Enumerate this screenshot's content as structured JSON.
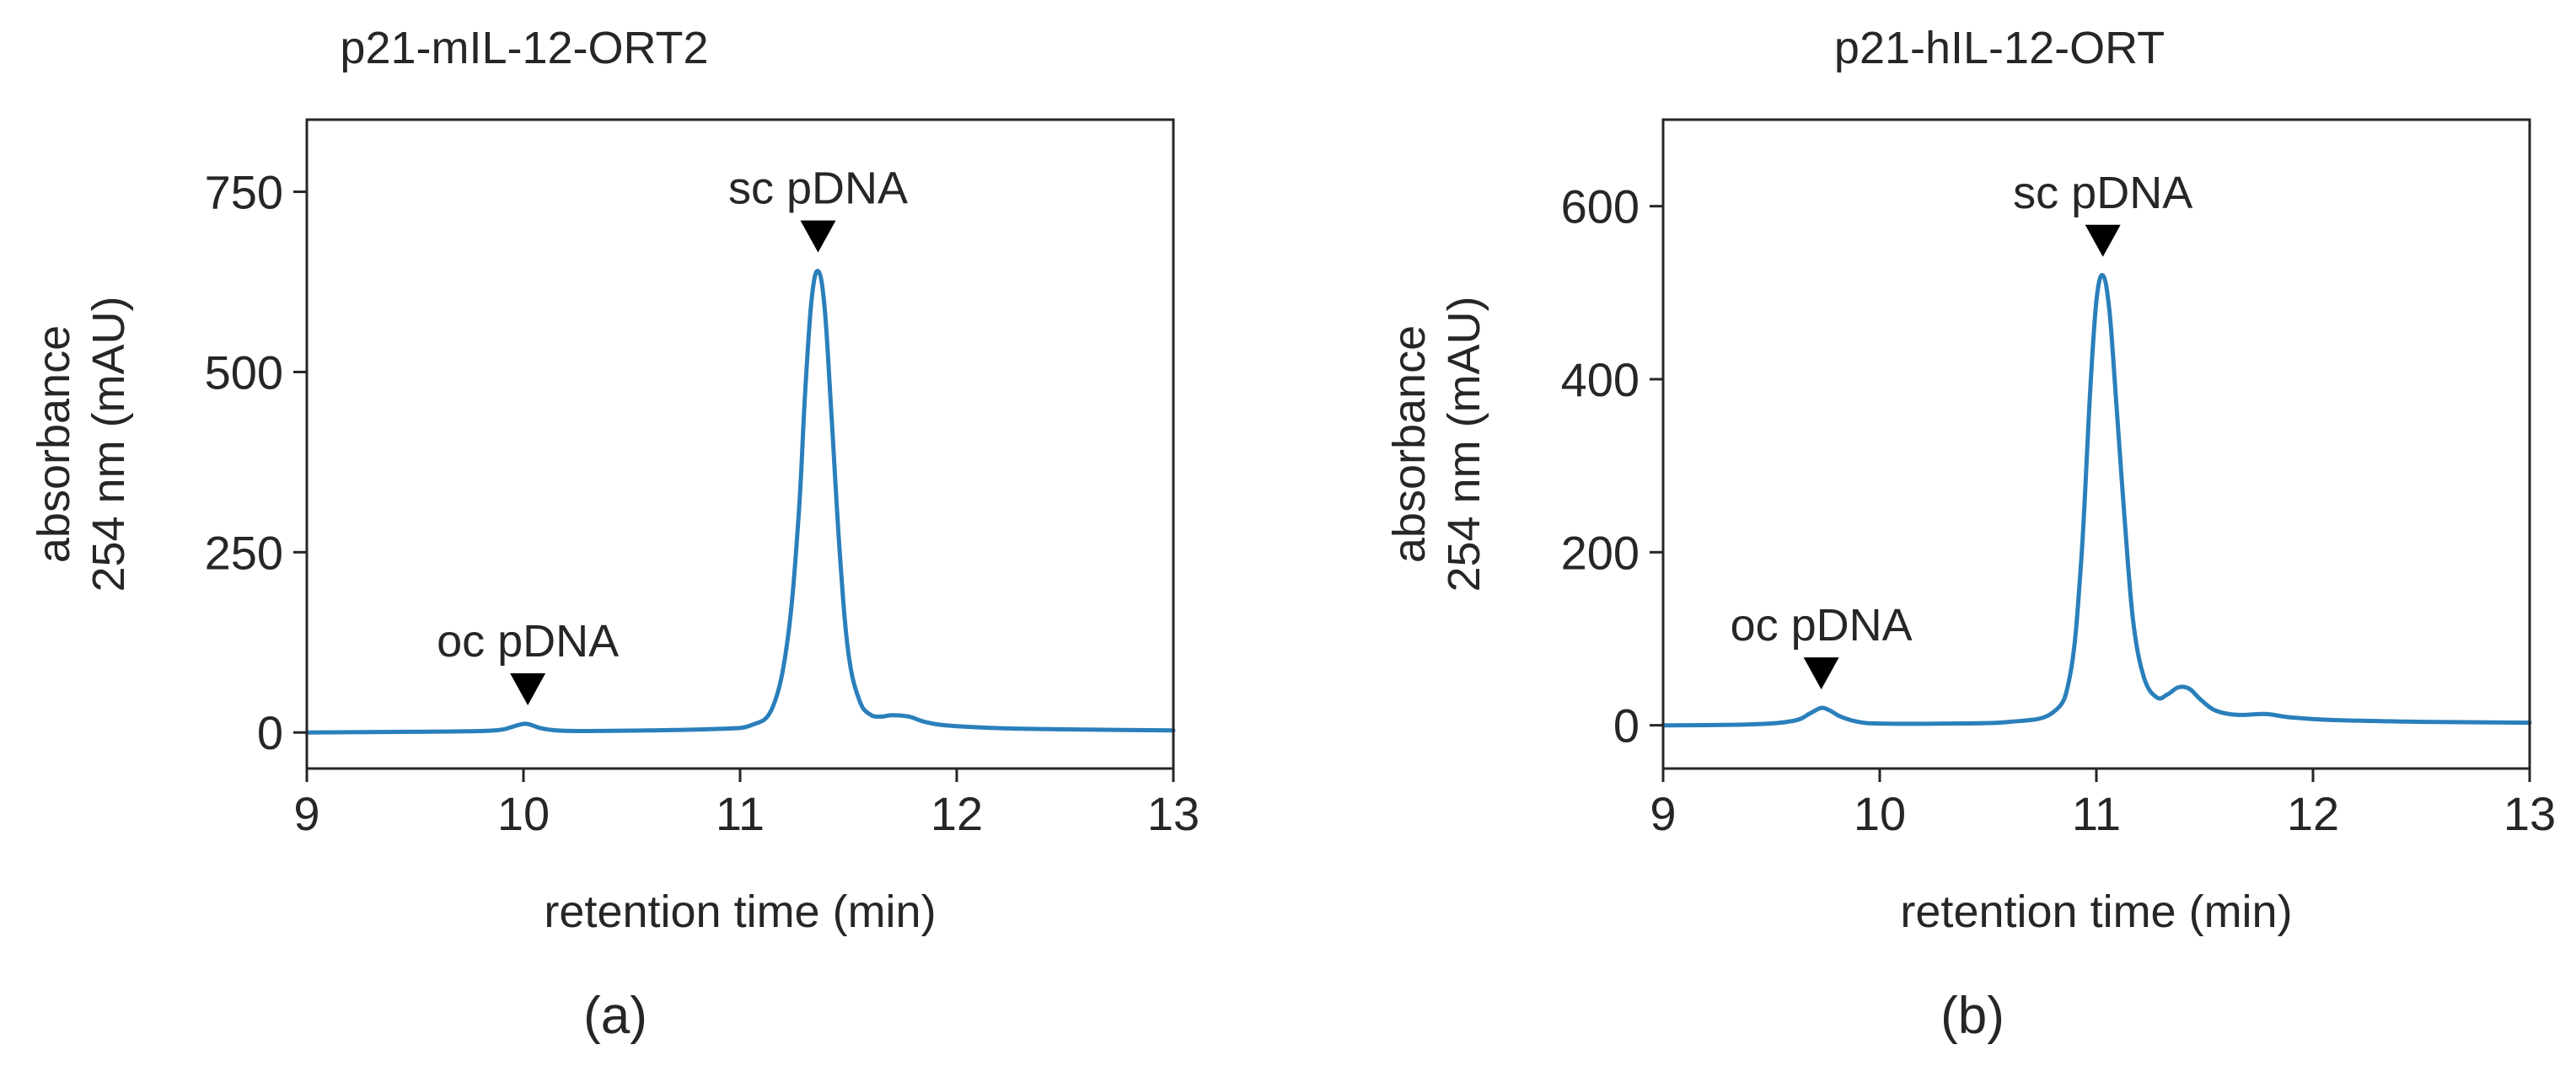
{
  "colors": {
    "trace": "#2a7fbb",
    "axis": "#262626",
    "text": "#262626",
    "background": "#ffffff"
  },
  "chart_data": [
    {
      "type": "line",
      "panel_label": "(a)",
      "title": "p21-mIL-12-ORT2",
      "xlabel": "retention time (min)",
      "ylabel_line1": "absorbance",
      "ylabel_line2": "254 nm (mAU)",
      "xlim": [
        9,
        13
      ],
      "ylim": [
        -50,
        850
      ],
      "xticks": [
        9,
        10,
        11,
        12,
        13
      ],
      "yticks": [
        0,
        250,
        500,
        750
      ],
      "grid": false,
      "series": [
        {
          "name": "absorbance",
          "x": [
            9.0,
            9.5,
            9.8,
            9.9,
            9.95,
            10.0,
            10.03,
            10.08,
            10.15,
            10.3,
            10.6,
            10.9,
            11.05,
            11.15,
            11.22,
            11.27,
            11.3,
            11.33,
            11.36,
            11.39,
            11.42,
            11.46,
            11.5,
            11.55,
            11.6,
            11.65,
            11.7,
            11.78,
            11.85,
            11.95,
            12.2,
            12.6,
            13.0
          ],
          "y": [
            0,
            1,
            2,
            4,
            8,
            12,
            11,
            6,
            3,
            2,
            3,
            5,
            10,
            35,
            130,
            300,
            470,
            600,
            640,
            590,
            450,
            250,
            110,
            45,
            25,
            22,
            24,
            22,
            15,
            10,
            6,
            4,
            3
          ]
        }
      ],
      "annotations": [
        {
          "text": "oc pDNA",
          "x": 10.02,
          "y": 12
        },
        {
          "text": "sc pDNA",
          "x": 11.36,
          "y": 640
        }
      ]
    },
    {
      "type": "line",
      "panel_label": "(b)",
      "title": "p21-hIL-12-ORT",
      "xlabel": "retention time (min)",
      "ylabel_line1": "absorbance",
      "ylabel_line2": "254 nm (mAU)",
      "xlim": [
        9,
        13
      ],
      "ylim": [
        -50,
        700
      ],
      "xticks": [
        9,
        10,
        11,
        12,
        13
      ],
      "yticks": [
        0,
        200,
        400,
        600
      ],
      "grid": false,
      "series": [
        {
          "name": "absorbance",
          "x": [
            9.0,
            9.4,
            9.6,
            9.68,
            9.73,
            9.77,
            9.82,
            9.9,
            10.0,
            10.3,
            10.6,
            10.8,
            10.88,
            10.93,
            10.97,
            11.0,
            11.03,
            11.06,
            11.09,
            11.13,
            11.17,
            11.22,
            11.28,
            11.33,
            11.38,
            11.43,
            11.48,
            11.55,
            11.65,
            11.78,
            11.9,
            12.1,
            12.5,
            13.0
          ],
          "y": [
            0,
            1,
            5,
            14,
            20,
            17,
            10,
            4,
            2,
            2,
            4,
            15,
            60,
            190,
            380,
            490,
            520,
            480,
            380,
            240,
            120,
            55,
            32,
            36,
            44,
            42,
            30,
            17,
            12,
            13,
            9,
            6,
            4,
            3
          ]
        }
      ],
      "annotations": [
        {
          "text": "oc pDNA",
          "x": 9.73,
          "y": 20
        },
        {
          "text": "sc pDNA",
          "x": 11.03,
          "y": 520
        }
      ]
    }
  ]
}
